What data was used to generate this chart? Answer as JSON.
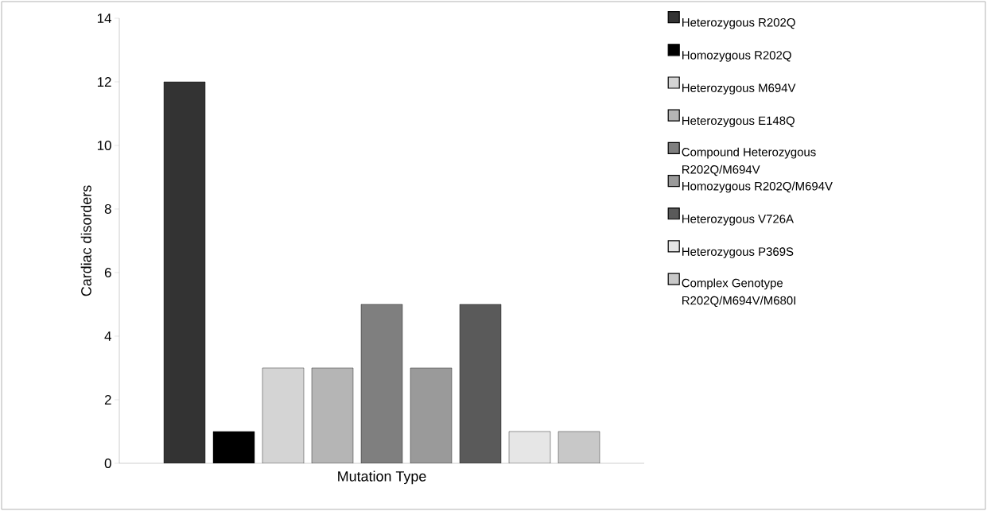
{
  "chart_data": {
    "type": "bar",
    "xlabel": "Mutation Type",
    "ylabel": "Cardiac disorders",
    "categories": [
      null
    ],
    "series": [
      {
        "name": "Heterozygous R202Q",
        "color": "#333333",
        "values": [
          12
        ]
      },
      {
        "name": "Homozygous R202Q",
        "color": "#000000",
        "values": [
          1
        ]
      },
      {
        "name": "Heterozygous M694V",
        "color": "#d4d4d4",
        "values": [
          3
        ]
      },
      {
        "name": "Heterozygous E148Q",
        "color": "#b5b5b5",
        "values": [
          3
        ]
      },
      {
        "name": "Compound Heterozygous R202Q/M694V",
        "color": "#7f7f7f",
        "values": [
          5
        ]
      },
      {
        "name": "Homozygous R202Q/M694V",
        "color": "#9a9a9a",
        "values": [
          3
        ]
      },
      {
        "name": "Heterozygous V726A",
        "color": "#5a5a5a",
        "values": [
          5
        ]
      },
      {
        "name": "Heterozygous P369S",
        "color": "#e6e6e6",
        "values": [
          1
        ]
      },
      {
        "name": "Complex Genotype R202Q/M694V/M680I",
        "color": "#c8c8c8",
        "values": [
          1
        ]
      }
    ],
    "ylim": [
      0,
      14
    ],
    "yticks": [
      0,
      2,
      4,
      6,
      8,
      10,
      12,
      14
    ],
    "grid": false,
    "legend": "right"
  }
}
